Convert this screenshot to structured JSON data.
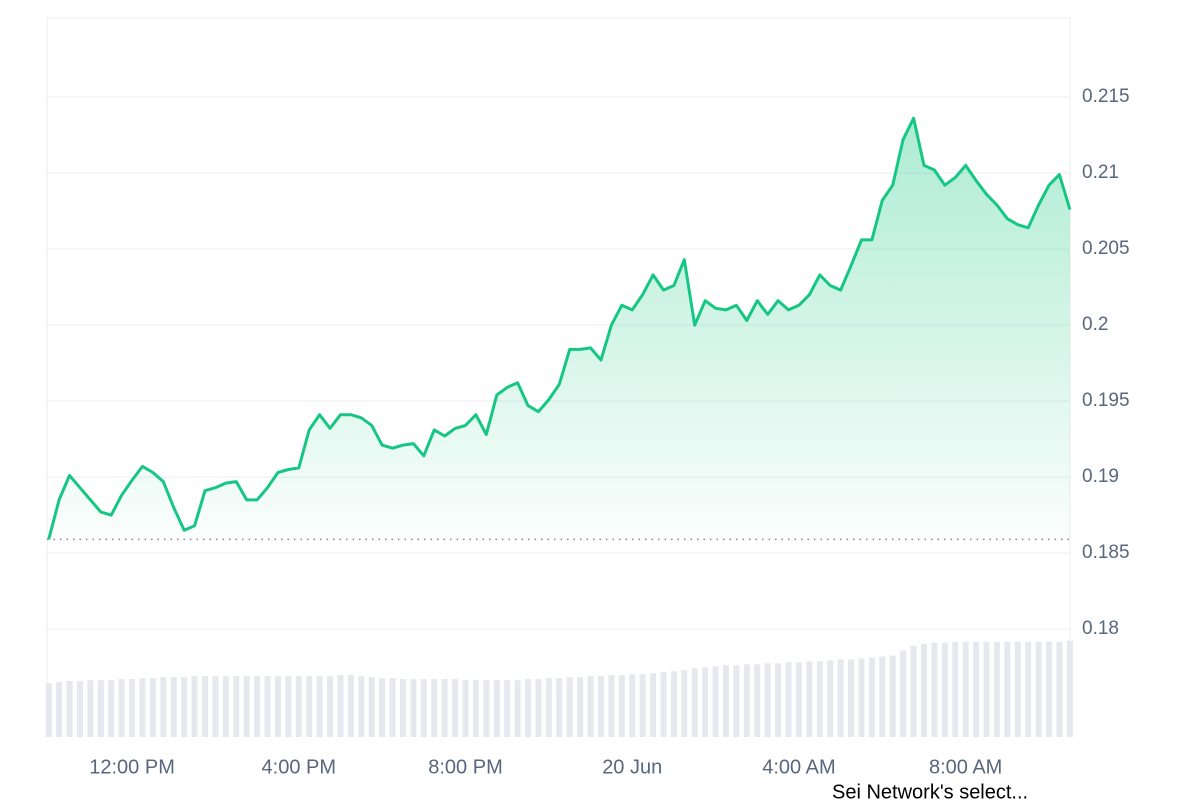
{
  "chart_data": {
    "type": "line",
    "categories": [
      null,
      null,
      null,
      null,
      null,
      null,
      null,
      null,
      "12:00 PM",
      null,
      null,
      null,
      null,
      null,
      null,
      null,
      null,
      null,
      null,
      null,
      null,
      null,
      null,
      null,
      "4:00 PM",
      null,
      null,
      null,
      null,
      null,
      null,
      null,
      null,
      null,
      null,
      null,
      null,
      null,
      null,
      null,
      "8:00 PM",
      null,
      null,
      null,
      null,
      null,
      null,
      null,
      null,
      null,
      null,
      null,
      null,
      null,
      null,
      null,
      "20 Jun",
      null,
      null,
      null,
      null,
      null,
      null,
      null,
      null,
      null,
      null,
      null,
      null,
      null,
      null,
      null,
      "4:00 AM",
      null,
      null,
      null,
      null,
      null,
      null,
      null,
      null,
      null,
      null,
      null,
      null,
      null,
      null,
      null,
      "8:00 AM",
      null,
      null,
      null,
      null,
      null,
      null,
      null,
      null,
      null,
      null
    ],
    "series": [
      {
        "color": "#16c784",
        "values": [
          0.1859,
          0.1885,
          0.1901,
          0.1893,
          0.1885,
          0.1877,
          0.1875,
          0.1888,
          0.1898,
          0.1907,
          0.1903,
          0.1897,
          0.188,
          0.1865,
          0.1868,
          0.1891,
          0.1893,
          0.1896,
          0.1897,
          0.1885,
          0.1885,
          0.1893,
          0.1903,
          0.1905,
          0.1906,
          0.1931,
          0.1941,
          0.1932,
          0.1941,
          0.1941,
          0.1939,
          0.1934,
          0.1921,
          0.1919,
          0.1921,
          0.1922,
          0.1914,
          0.1931,
          0.1927,
          0.1932,
          0.1934,
          0.1941,
          0.1928,
          0.1954,
          0.1959,
          0.1962,
          0.1947,
          0.1943,
          0.1951,
          0.1961,
          0.1984,
          0.1984,
          0.1985,
          0.1977,
          0.2,
          0.2013,
          0.201,
          0.202,
          0.2033,
          0.2023,
          0.2026,
          0.2043,
          0.2,
          0.2016,
          0.2011,
          0.201,
          0.2013,
          0.2003,
          0.2016,
          0.2007,
          0.2016,
          0.201,
          0.2013,
          0.202,
          0.2033,
          0.2026,
          0.2023,
          0.2039,
          0.2056,
          0.2056,
          0.2082,
          0.2092,
          0.2122,
          0.2136,
          0.2105,
          0.2102,
          0.2092,
          0.2097,
          0.2105,
          0.2095,
          0.2086,
          0.2079,
          0.207,
          0.2066,
          0.2064,
          0.2079,
          0.2092,
          0.2099,
          0.2076
        ]
      }
    ],
    "ylim": [
      0.1729,
      0.2202
    ],
    "yticks": [
      0.18,
      0.185,
      0.19,
      0.195,
      0.2,
      0.205,
      0.21,
      0.215
    ],
    "grid": true,
    "baseline": 0.1859,
    "volume": {
      "color": "#e6e8ee",
      "vlim": [
        0,
        110
      ],
      "values": [
        55,
        56,
        57,
        57,
        58,
        58,
        58,
        59,
        59,
        60,
        60,
        61,
        61,
        61,
        62,
        62,
        62,
        62,
        62,
        62,
        62,
        62,
        62,
        62,
        62,
        62,
        62,
        62,
        63,
        63,
        62,
        61,
        60,
        60,
        59,
        59,
        59,
        59,
        59,
        59,
        58,
        58,
        58,
        58,
        58,
        58,
        59,
        59,
        60,
        60,
        61,
        61,
        62,
        62,
        63,
        63,
        64,
        64,
        65,
        66,
        67,
        68,
        70,
        71,
        72,
        73,
        73,
        74,
        74,
        75,
        75,
        76,
        76,
        77,
        77,
        78,
        79,
        79,
        80,
        81,
        82,
        83,
        88,
        93,
        95,
        96,
        96,
        97,
        97,
        97,
        97,
        97,
        97,
        97,
        97,
        97,
        97,
        97,
        98
      ]
    },
    "caption": "Sei Network's select..."
  }
}
